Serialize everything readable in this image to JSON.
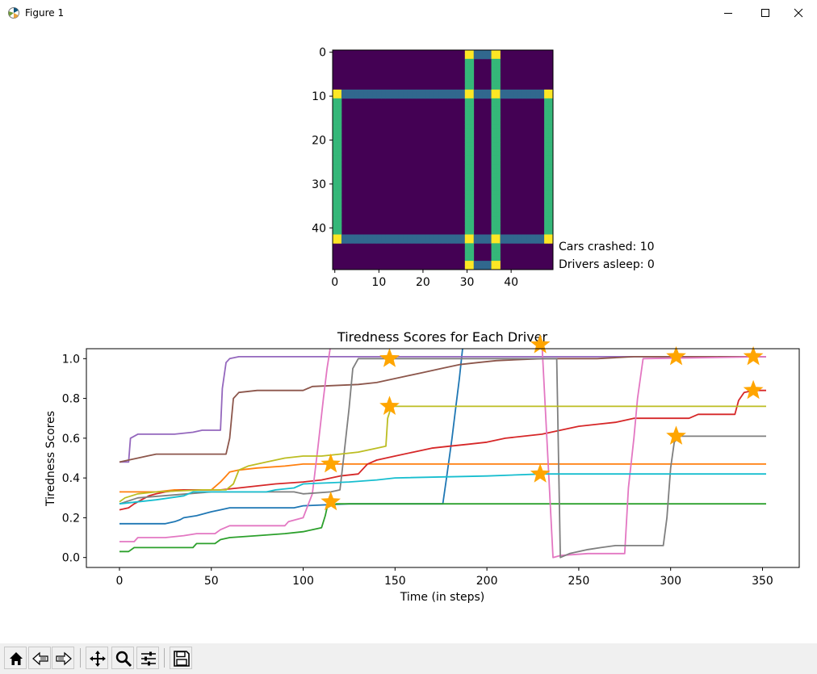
{
  "window": {
    "title": "Figure 1",
    "minimize_icon": "minimize-icon",
    "maximize_icon": "maximize-icon",
    "close_icon": "close-icon"
  },
  "toolbar": {
    "buttons": [
      {
        "name": "home-icon",
        "tooltip": "Home"
      },
      {
        "name": "back-icon",
        "tooltip": "Back"
      },
      {
        "name": "forward-icon",
        "tooltip": "Forward"
      },
      {
        "name": "pan-icon",
        "tooltip": "Pan"
      },
      {
        "name": "zoom-icon",
        "tooltip": "Zoom"
      },
      {
        "name": "configure-icon",
        "tooltip": "Configure subplots"
      },
      {
        "name": "save-icon",
        "tooltip": "Save"
      }
    ]
  },
  "grid_panel": {
    "status": [
      "Cars crashed: 10",
      "Drivers asleep: 0"
    ]
  },
  "chart_data": [
    {
      "type": "heatmap",
      "grid_size": [
        50,
        50
      ],
      "x_ticks": [
        0,
        10,
        20,
        30,
        40
      ],
      "y_ticks": [
        0,
        10,
        20,
        30,
        40
      ],
      "colors": {
        "background": "#440154",
        "horizontal_road": "#31688e",
        "vertical_road": "#35b779",
        "intersection": "#fde725"
      },
      "horizontal_roads": {
        "rows": [
          9,
          10,
          42,
          43
        ],
        "x_from": 0,
        "x_to": 49
      },
      "vertical_roads": {
        "cols": [
          0,
          1,
          30,
          31,
          36,
          37,
          48,
          49
        ],
        "y_from": 9,
        "y_to": 43
      },
      "top_bottom_segments": {
        "cols": [
          30,
          31,
          36,
          37
        ],
        "rows_top": [
          0,
          1
        ],
        "rows_bottom": [
          48,
          49
        ],
        "connector_cols": [
          32,
          35
        ]
      }
    },
    {
      "type": "line",
      "title": "Tiredness Scores for Each Driver",
      "xlabel": "Time (in steps)",
      "ylabel": "Tiredness Scores",
      "xlim": [
        -18,
        370
      ],
      "ylim": [
        -0.05,
        1.05
      ],
      "x_ticks": [
        0,
        50,
        100,
        150,
        200,
        250,
        300,
        350
      ],
      "y_ticks": [
        "0.0",
        "0.2",
        "0.4",
        "0.6",
        "0.8",
        "1.0"
      ],
      "series": [
        {
          "color": "#1f77b4",
          "points": [
            [
              0,
              0.17
            ],
            [
              25,
              0.17
            ],
            [
              30,
              0.18
            ],
            [
              33,
              0.19
            ],
            [
              35,
              0.2
            ],
            [
              42,
              0.21
            ],
            [
              50,
              0.23
            ],
            [
              55,
              0.24
            ],
            [
              60,
              0.25
            ],
            [
              95,
              0.25
            ],
            [
              100,
              0.26
            ],
            [
              125,
              0.27
            ],
            [
              176,
              0.27
            ],
            [
              178,
              0.4
            ],
            [
              181,
              0.6
            ],
            [
              183,
              0.75
            ],
            [
              185,
              0.9
            ],
            [
              187,
              1.07
            ]
          ]
        },
        {
          "color": "#ff7f0e",
          "points": [
            [
              0,
              0.33
            ],
            [
              20,
              0.33
            ],
            [
              30,
              0.34
            ],
            [
              50,
              0.34
            ],
            [
              55,
              0.38
            ],
            [
              58,
              0.41
            ],
            [
              60,
              0.43
            ],
            [
              65,
              0.44
            ],
            [
              75,
              0.45
            ],
            [
              90,
              0.46
            ],
            [
              100,
              0.47
            ],
            [
              352,
              0.47
            ]
          ]
        },
        {
          "color": "#2ca02c",
          "points": [
            [
              0,
              0.03
            ],
            [
              5,
              0.03
            ],
            [
              8,
              0.05
            ],
            [
              40,
              0.05
            ],
            [
              42,
              0.07
            ],
            [
              52,
              0.07
            ],
            [
              55,
              0.09
            ],
            [
              60,
              0.1
            ],
            [
              75,
              0.11
            ],
            [
              90,
              0.12
            ],
            [
              100,
              0.13
            ],
            [
              105,
              0.14
            ],
            [
              110,
              0.15
            ],
            [
              112,
              0.21
            ],
            [
              113,
              0.25
            ],
            [
              115,
              0.26
            ],
            [
              118,
              0.27
            ],
            [
              352,
              0.27
            ]
          ]
        },
        {
          "color": "#d62728",
          "points": [
            [
              0,
              0.24
            ],
            [
              5,
              0.25
            ],
            [
              8,
              0.27
            ],
            [
              12,
              0.29
            ],
            [
              16,
              0.31
            ],
            [
              20,
              0.32
            ],
            [
              25,
              0.33
            ],
            [
              35,
              0.34
            ],
            [
              55,
              0.34
            ],
            [
              65,
              0.35
            ],
            [
              75,
              0.36
            ],
            [
              85,
              0.37
            ],
            [
              100,
              0.38
            ],
            [
              110,
              0.39
            ],
            [
              120,
              0.41
            ],
            [
              130,
              0.42
            ],
            [
              135,
              0.47
            ],
            [
              140,
              0.49
            ],
            [
              150,
              0.51
            ],
            [
              160,
              0.53
            ],
            [
              170,
              0.55
            ],
            [
              180,
              0.56
            ],
            [
              190,
              0.57
            ],
            [
              200,
              0.58
            ],
            [
              210,
              0.6
            ],
            [
              220,
              0.61
            ],
            [
              230,
              0.62
            ],
            [
              240,
              0.64
            ],
            [
              250,
              0.66
            ],
            [
              260,
              0.67
            ],
            [
              270,
              0.68
            ],
            [
              280,
              0.7
            ],
            [
              310,
              0.7
            ],
            [
              315,
              0.72
            ],
            [
              335,
              0.72
            ],
            [
              337,
              0.79
            ],
            [
              340,
              0.83
            ],
            [
              345,
              0.84
            ],
            [
              352,
              0.84
            ]
          ]
        },
        {
          "color": "#9467bd",
          "points": [
            [
              0,
              0.48
            ],
            [
              5,
              0.48
            ],
            [
              6,
              0.6
            ],
            [
              10,
              0.62
            ],
            [
              30,
              0.62
            ],
            [
              40,
              0.63
            ],
            [
              45,
              0.64
            ],
            [
              55,
              0.64
            ],
            [
              56,
              0.85
            ],
            [
              58,
              0.98
            ],
            [
              60,
              1.0
            ],
            [
              65,
              1.01
            ],
            [
              352,
              1.01
            ]
          ]
        },
        {
          "color": "#8c564b",
          "points": [
            [
              0,
              0.48
            ],
            [
              10,
              0.5
            ],
            [
              15,
              0.51
            ],
            [
              20,
              0.52
            ],
            [
              58,
              0.52
            ],
            [
              60,
              0.6
            ],
            [
              62,
              0.8
            ],
            [
              65,
              0.83
            ],
            [
              75,
              0.84
            ],
            [
              100,
              0.84
            ],
            [
              105,
              0.86
            ],
            [
              130,
              0.87
            ],
            [
              140,
              0.88
            ],
            [
              155,
              0.91
            ],
            [
              165,
              0.93
            ],
            [
              175,
              0.95
            ],
            [
              185,
              0.97
            ],
            [
              195,
              0.98
            ],
            [
              205,
              0.99
            ],
            [
              230,
              1.0
            ],
            [
              260,
              1.0
            ],
            [
              280,
              1.01
            ],
            [
              352,
              1.01
            ]
          ]
        },
        {
          "color": "#e377c2",
          "points": [
            [
              0,
              0.08
            ],
            [
              8,
              0.08
            ],
            [
              10,
              0.1
            ],
            [
              25,
              0.1
            ],
            [
              35,
              0.11
            ],
            [
              42,
              0.12
            ],
            [
              52,
              0.12
            ],
            [
              55,
              0.14
            ],
            [
              60,
              0.16
            ],
            [
              90,
              0.16
            ],
            [
              92,
              0.18
            ],
            [
              100,
              0.2
            ],
            [
              105,
              0.32
            ],
            [
              108,
              0.55
            ],
            [
              111,
              0.8
            ],
            [
              113,
              0.95
            ],
            [
              115,
              1.07
            ],
            [
              230,
              1.07
            ],
            [
              236,
              0.0
            ],
            [
              240,
              0.01
            ],
            [
              255,
              0.02
            ],
            [
              275,
              0.02
            ],
            [
              277,
              0.35
            ],
            [
              280,
              0.6
            ],
            [
              282,
              0.8
            ],
            [
              285,
              1.0
            ],
            [
              352,
              1.01
            ]
          ]
        },
        {
          "color": "#7f7f7f",
          "points": [
            [
              0,
              0.27
            ],
            [
              10,
              0.3
            ],
            [
              50,
              0.33
            ],
            [
              90,
              0.33
            ],
            [
              95,
              0.33
            ],
            [
              100,
              0.32
            ],
            [
              115,
              0.33
            ],
            [
              120,
              0.34
            ],
            [
              122,
              0.5
            ],
            [
              125,
              0.75
            ],
            [
              127,
              0.95
            ],
            [
              130,
              1.0
            ],
            [
              238,
              1.0
            ],
            [
              240,
              0.0
            ],
            [
              245,
              0.02
            ],
            [
              250,
              0.03
            ],
            [
              255,
              0.04
            ],
            [
              262,
              0.05
            ],
            [
              270,
              0.06
            ],
            [
              296,
              0.06
            ],
            [
              298,
              0.2
            ],
            [
              300,
              0.45
            ],
            [
              302,
              0.58
            ],
            [
              305,
              0.61
            ],
            [
              352,
              0.61
            ]
          ]
        },
        {
          "color": "#bcbd22",
          "points": [
            [
              0,
              0.28
            ],
            [
              3,
              0.3
            ],
            [
              10,
              0.32
            ],
            [
              20,
              0.33
            ],
            [
              45,
              0.34
            ],
            [
              58,
              0.34
            ],
            [
              62,
              0.37
            ],
            [
              65,
              0.44
            ],
            [
              70,
              0.46
            ],
            [
              80,
              0.48
            ],
            [
              90,
              0.5
            ],
            [
              100,
              0.51
            ],
            [
              110,
              0.51
            ],
            [
              120,
              0.52
            ],
            [
              130,
              0.53
            ],
            [
              140,
              0.55
            ],
            [
              145,
              0.56
            ],
            [
              146,
              0.7
            ],
            [
              148,
              0.76
            ],
            [
              352,
              0.76
            ]
          ]
        },
        {
          "color": "#17becf",
          "points": [
            [
              0,
              0.27
            ],
            [
              20,
              0.29
            ],
            [
              35,
              0.31
            ],
            [
              40,
              0.33
            ],
            [
              80,
              0.33
            ],
            [
              85,
              0.34
            ],
            [
              95,
              0.35
            ],
            [
              100,
              0.37
            ],
            [
              125,
              0.38
            ],
            [
              140,
              0.39
            ],
            [
              150,
              0.4
            ],
            [
              200,
              0.41
            ],
            [
              230,
              0.42
            ],
            [
              352,
              0.42
            ]
          ]
        }
      ],
      "markers": {
        "color": "#ffa500",
        "shape": "star",
        "points": [
          [
            115,
            0.47
          ],
          [
            115,
            0.28
          ],
          [
            147,
            1.0
          ],
          [
            147,
            0.76
          ],
          [
            229,
            1.07
          ],
          [
            229,
            0.42
          ],
          [
            303,
            1.01
          ],
          [
            303,
            0.61
          ],
          [
            345,
            1.01
          ],
          [
            345,
            0.84
          ]
        ]
      }
    }
  ]
}
